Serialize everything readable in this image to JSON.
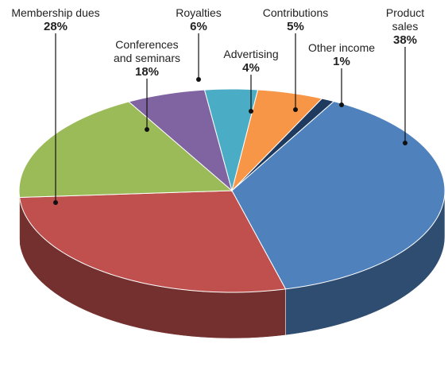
{
  "chart_data": {
    "type": "pie",
    "categories": [
      "Other income",
      "Product sales",
      "Membership dues",
      "Conferences and seminars",
      "Royalties",
      "Advertising",
      "Contributions"
    ],
    "values": [
      1,
      38,
      28,
      18,
      6,
      4,
      5
    ],
    "value_labels": [
      "1%",
      "38%",
      "28%",
      "18%",
      "6%",
      "4%",
      "5%"
    ],
    "colors": [
      "#1f3a5f",
      "#4f81bd",
      "#c0504d",
      "#9bbb59",
      "#8064a2",
      "#4bacc6",
      "#f79646"
    ]
  }
}
